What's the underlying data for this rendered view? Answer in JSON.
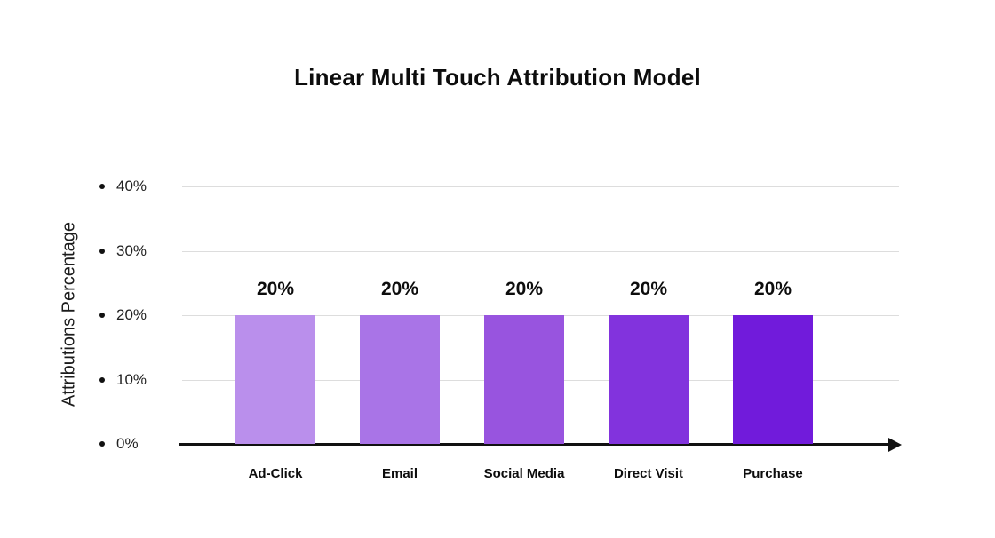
{
  "chart_data": {
    "type": "bar",
    "title": "Linear Multi Touch Attribution Model",
    "ylabel": "Attributions Percentage",
    "xlabel": "",
    "categories": [
      "Ad-Click",
      "Email",
      "Social Media",
      "Direct Visit",
      "Purchase"
    ],
    "values": [
      20,
      20,
      20,
      20,
      20
    ],
    "value_labels": [
      "20%",
      "20%",
      "20%",
      "20%",
      "20%"
    ],
    "bar_colors": [
      "#BA8FEC",
      "#A974E7",
      "#9854DF",
      "#8233DD",
      "#711BDB"
    ],
    "y_ticks": [
      {
        "value": 0,
        "label": "0%"
      },
      {
        "value": 10,
        "label": "10%"
      },
      {
        "value": 20,
        "label": "20%"
      },
      {
        "value": 30,
        "label": "30%"
      },
      {
        "value": 40,
        "label": "40%"
      }
    ],
    "ylim": [
      0,
      40
    ],
    "grid": "horizontal",
    "legend": "none",
    "background": "#FFFFFF",
    "axis_color": "#111111",
    "gridline_color": "#DDDDDD"
  }
}
